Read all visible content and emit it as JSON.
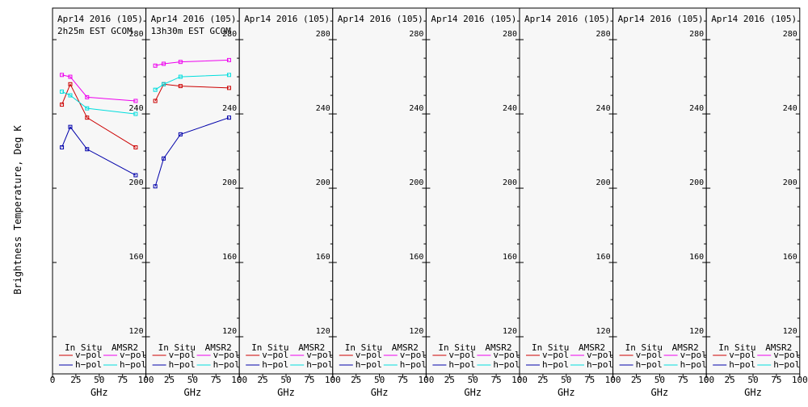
{
  "y_axis_label": "Brightness Temperature, Deg K",
  "legend": {
    "in_situ_label": "In Situ",
    "amsr2_label": "AMSR2",
    "vpol_label": "v−pol",
    "hpol_label": "h−pol"
  },
  "colors": {
    "in_situ_v": "#cc0000",
    "in_situ_h": "#0000aa",
    "amsr2_v": "#ee00ee",
    "amsr2_h": "#00dddd",
    "background": "#f7f7f7"
  },
  "chart_data": [
    {
      "type": "line",
      "title": "Apr14 2016 (105)",
      "subtitle": "2h25m EST GCOM",
      "xlabel": "GHz",
      "xlim": [
        0,
        100
      ],
      "ylim": [
        100,
        297
      ],
      "x_ticks": [
        0,
        25,
        50,
        75,
        100
      ],
      "y_ticks": [
        120,
        160,
        200,
        240,
        280
      ],
      "series": [
        {
          "name": "In Situ v-pol",
          "x": [
            10,
            19,
            37,
            89
          ],
          "y": [
            245,
            256,
            238,
            222
          ]
        },
        {
          "name": "In Situ h-pol",
          "x": [
            10,
            19,
            37,
            89
          ],
          "y": [
            222,
            233,
            221,
            207
          ]
        },
        {
          "name": "AMSR2 v-pol",
          "x": [
            10,
            19,
            37,
            89
          ],
          "y": [
            261,
            260,
            249,
            247
          ]
        },
        {
          "name": "AMSR2 h-pol",
          "x": [
            10,
            19,
            37,
            89
          ],
          "y": [
            252,
            250,
            243,
            240
          ]
        }
      ]
    },
    {
      "type": "line",
      "title": "Apr14 2016 (105)",
      "subtitle": "13h30m EST GCOM",
      "xlabel": "GHz",
      "xlim": [
        0,
        100
      ],
      "ylim": [
        100,
        297
      ],
      "x_ticks": [
        0,
        25,
        50,
        75,
        100
      ],
      "y_ticks": [
        120,
        160,
        200,
        240,
        280
      ],
      "series": [
        {
          "name": "In Situ v-pol",
          "x": [
            10,
            19,
            37,
            89
          ],
          "y": [
            247,
            256,
            255,
            254
          ]
        },
        {
          "name": "In Situ h-pol",
          "x": [
            10,
            19,
            37,
            89
          ],
          "y": [
            201,
            216,
            229,
            238
          ]
        },
        {
          "name": "AMSR2 v-pol",
          "x": [
            10,
            19,
            37,
            89
          ],
          "y": [
            266,
            267,
            268,
            269
          ]
        },
        {
          "name": "AMSR2 h-pol",
          "x": [
            10,
            19,
            37,
            89
          ],
          "y": [
            253,
            256,
            260,
            261
          ]
        }
      ]
    },
    {
      "type": "line",
      "title": "Apr14 2016 (105)",
      "xlabel": "GHz",
      "xlim": [
        0,
        100
      ],
      "ylim": [
        100,
        297
      ],
      "x_ticks": [
        0,
        25,
        50,
        75,
        100
      ],
      "y_ticks": [
        120,
        160,
        200,
        240,
        280
      ],
      "series": []
    },
    {
      "type": "line",
      "title": "Apr14 2016 (105)",
      "xlabel": "GHz",
      "xlim": [
        0,
        100
      ],
      "ylim": [
        100,
        297
      ],
      "x_ticks": [
        0,
        25,
        50,
        75,
        100
      ],
      "y_ticks": [
        120,
        160,
        200,
        240,
        280
      ],
      "series": []
    },
    {
      "type": "line",
      "title": "Apr14 2016 (105)",
      "xlabel": "GHz",
      "xlim": [
        0,
        100
      ],
      "ylim": [
        100,
        297
      ],
      "x_ticks": [
        0,
        25,
        50,
        75,
        100
      ],
      "y_ticks": [
        120,
        160,
        200,
        240,
        280
      ],
      "series": []
    },
    {
      "type": "line",
      "title": "Apr14 2016 (105)",
      "xlabel": "GHz",
      "xlim": [
        0,
        100
      ],
      "ylim": [
        100,
        297
      ],
      "x_ticks": [
        0,
        25,
        50,
        75,
        100
      ],
      "y_ticks": [
        120,
        160,
        200,
        240,
        280
      ],
      "series": []
    },
    {
      "type": "line",
      "title": "Apr14 2016 (105)",
      "xlabel": "GHz",
      "xlim": [
        0,
        100
      ],
      "ylim": [
        100,
        297
      ],
      "x_ticks": [
        0,
        25,
        50,
        75,
        100
      ],
      "y_ticks": [
        120,
        160,
        200,
        240,
        280
      ],
      "series": []
    },
    {
      "type": "line",
      "title": "Apr14 2016 (105)",
      "xlabel": "GHz",
      "xlim": [
        0,
        100
      ],
      "ylim": [
        100,
        297
      ],
      "x_ticks": [
        0,
        25,
        50,
        75,
        100
      ],
      "y_ticks": [
        120,
        160,
        200,
        240,
        280
      ],
      "series": []
    }
  ]
}
